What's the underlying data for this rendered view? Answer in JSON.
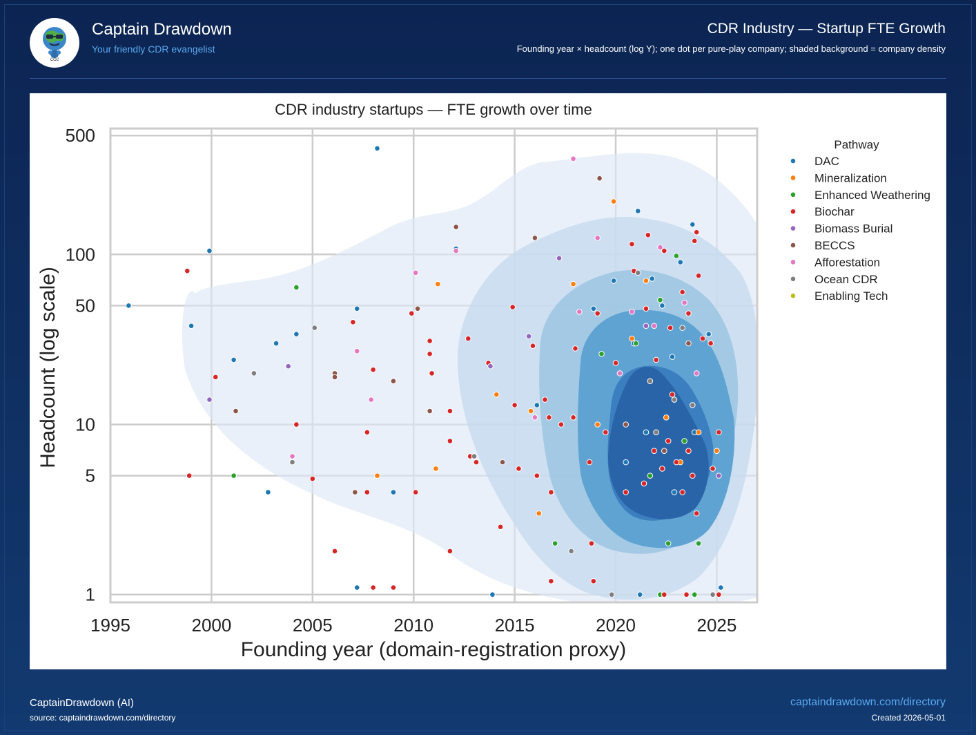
{
  "header": {
    "brand_title": "Captain Drawdown",
    "brand_subtitle": "Your friendly CDR evangelist",
    "title": "CDR Industry — Startup FTE Growth",
    "subtitle": "Founding year × headcount (log Y); one dot per pure-play company; shaded background = company density"
  },
  "logo": {
    "icon": "earth-mascot-icon",
    "badge_text": "CO2"
  },
  "footer": {
    "author": "CaptainDrawdown (AI)",
    "source": "source: captaindrawdown.com/directory",
    "link": "captaindrawdown.com/directory",
    "created": "Created 2026-05-01"
  },
  "colors": {
    "background": "#0c2452",
    "accent": "#5aa9f0",
    "DAC": "#1f77b4",
    "Mineralization": "#ff7f0e",
    "Enhanced Weathering": "#2ca02c",
    "Biochar": "#d62728",
    "Biomass Burial": "#9467bd",
    "BECCS": "#8c564b",
    "Afforestation": "#e377c2",
    "Ocean CDR": "#7f7f7f",
    "Enabling Tech": "#bcbd22"
  },
  "chart_data": {
    "type": "scatter",
    "title": "CDR industry startups — FTE growth over time",
    "xlabel": "Founding year (domain-registration proxy)",
    "ylabel": "Headcount  (log scale)",
    "xlim": [
      1995,
      2027
    ],
    "ylim": [
      0.9,
      550
    ],
    "yscale": "log",
    "xticks": [
      1995,
      2000,
      2005,
      2010,
      2015,
      2020,
      2025
    ],
    "yticks": [
      1,
      5,
      10,
      50,
      100,
      500
    ],
    "grid": true,
    "legend": {
      "title": "Pathway",
      "placement": "outside-right"
    },
    "density_background": true,
    "series": [
      {
        "name": "DAC",
        "points": [
          [
            1995.9,
            50
          ],
          [
            1999.0,
            38
          ],
          [
            1999.9,
            105
          ],
          [
            2001.1,
            24
          ],
          [
            2003.2,
            30
          ],
          [
            2004.2,
            34
          ],
          [
            2002.8,
            4
          ],
          [
            2007.2,
            48
          ],
          [
            2008.2,
            420
          ],
          [
            2009.0,
            4
          ],
          [
            2012.1,
            108
          ],
          [
            2013.9,
            1
          ],
          [
            2016.1,
            13
          ],
          [
            2018.9,
            48
          ],
          [
            2019.9,
            70
          ],
          [
            2021.1,
            180
          ],
          [
            2021.8,
            72
          ],
          [
            2022.3,
            50
          ],
          [
            2023.2,
            90
          ],
          [
            2023.8,
            150
          ],
          [
            2024.6,
            34
          ],
          [
            2025.2,
            1.1
          ],
          [
            2020.9,
            30
          ],
          [
            2021.5,
            9
          ],
          [
            2022.8,
            25
          ],
          [
            2023.9,
            9
          ],
          [
            2020.5,
            6
          ],
          [
            2021.2,
            1
          ],
          [
            2022.9,
            4
          ],
          [
            2007.2,
            1.1
          ]
        ]
      },
      {
        "name": "Mineralization",
        "points": [
          [
            2008.2,
            5
          ],
          [
            2011.2,
            67
          ],
          [
            2011.1,
            5.5
          ],
          [
            2014.1,
            15
          ],
          [
            2015.8,
            12
          ],
          [
            2016.2,
            3
          ],
          [
            2017.9,
            67
          ],
          [
            2019.9,
            205
          ],
          [
            2021.5,
            70
          ],
          [
            2022.5,
            11
          ],
          [
            2024.1,
            9
          ],
          [
            2025.0,
            7
          ],
          [
            2019.1,
            10
          ],
          [
            2023.2,
            6
          ],
          [
            2020.8,
            32
          ]
        ]
      },
      {
        "name": "Enhanced Weathering",
        "points": [
          [
            2001.1,
            5
          ],
          [
            2004.2,
            64
          ],
          [
            2017.0,
            2
          ],
          [
            2019.3,
            26
          ],
          [
            2021.0,
            30
          ],
          [
            2022.2,
            54
          ],
          [
            2023.0,
            98
          ],
          [
            2023.4,
            8
          ],
          [
            2024.1,
            2
          ],
          [
            2021.7,
            5
          ],
          [
            2022.6,
            2
          ],
          [
            2023.9,
            1
          ],
          [
            2022.2,
            1
          ]
        ]
      },
      {
        "name": "Biochar",
        "points": [
          [
            1998.8,
            80
          ],
          [
            1998.9,
            5
          ],
          [
            2000.2,
            19
          ],
          [
            2004.2,
            10
          ],
          [
            2005.0,
            4.8
          ],
          [
            2006.1,
            1.8
          ],
          [
            2007.0,
            40
          ],
          [
            2007.7,
            9
          ],
          [
            2007.7,
            4
          ],
          [
            2008.0,
            21
          ],
          [
            2008.0,
            1.1
          ],
          [
            2009.0,
            1.1
          ],
          [
            2009.9,
            45
          ],
          [
            2010.1,
            4
          ],
          [
            2010.8,
            31
          ],
          [
            2010.8,
            26
          ],
          [
            2010.9,
            20
          ],
          [
            2011.8,
            12
          ],
          [
            2011.8,
            8
          ],
          [
            2011.8,
            1.8
          ],
          [
            2012.7,
            32
          ],
          [
            2012.8,
            6.5
          ],
          [
            2013.1,
            6
          ],
          [
            2013.7,
            23
          ],
          [
            2014.3,
            2.5
          ],
          [
            2014.9,
            49
          ],
          [
            2015.0,
            13
          ],
          [
            2015.2,
            5.5
          ],
          [
            2015.9,
            29
          ],
          [
            2016.1,
            5
          ],
          [
            2016.5,
            14
          ],
          [
            2016.7,
            11
          ],
          [
            2016.8,
            4
          ],
          [
            2016.8,
            1.2
          ],
          [
            2017.3,
            10
          ],
          [
            2017.9,
            11
          ],
          [
            2018.0,
            28
          ],
          [
            2018.7,
            6
          ],
          [
            2018.8,
            2
          ],
          [
            2018.9,
            1.2
          ],
          [
            2019.1,
            45
          ],
          [
            2019.5,
            9
          ],
          [
            2020.0,
            23
          ],
          [
            2020.8,
            115
          ],
          [
            2020.9,
            80
          ],
          [
            2021.5,
            48
          ],
          [
            2021.6,
            130
          ],
          [
            2022.0,
            24
          ],
          [
            2022.4,
            105
          ],
          [
            2022.7,
            37
          ],
          [
            2022.8,
            15
          ],
          [
            2023.3,
            60
          ],
          [
            2023.6,
            45
          ],
          [
            2023.9,
            120
          ],
          [
            2024.0,
            135
          ],
          [
            2024.1,
            75
          ],
          [
            2024.3,
            32
          ],
          [
            2024.7,
            30
          ],
          [
            2025.1,
            9
          ],
          [
            2024.8,
            5.5
          ],
          [
            2025.1,
            1
          ],
          [
            2020.5,
            4
          ],
          [
            2021.4,
            4.5
          ],
          [
            2021.9,
            7
          ],
          [
            2022.3,
            5.5
          ],
          [
            2022.6,
            8
          ],
          [
            2023.0,
            6
          ],
          [
            2023.3,
            4
          ],
          [
            2023.6,
            7
          ],
          [
            2023.8,
            5
          ],
          [
            2024.0,
            3
          ],
          [
            2022.4,
            1
          ],
          [
            2023.5,
            1
          ]
        ]
      },
      {
        "name": "Biomass Burial",
        "points": [
          [
            1999.9,
            14
          ],
          [
            2003.8,
            22
          ],
          [
            2004.0,
            6
          ],
          [
            2013.8,
            22
          ],
          [
            2015.7,
            33
          ],
          [
            2017.2,
            95
          ],
          [
            2025.1,
            5
          ],
          [
            2021.5,
            38
          ]
        ]
      },
      {
        "name": "BECCS",
        "points": [
          [
            2001.2,
            12
          ],
          [
            2006.1,
            20
          ],
          [
            2006.1,
            19
          ],
          [
            2007.1,
            4
          ],
          [
            2009.0,
            18
          ],
          [
            2010.2,
            48
          ],
          [
            2010.8,
            12
          ],
          [
            2012.1,
            145
          ],
          [
            2014.4,
            6
          ],
          [
            2016.0,
            125
          ],
          [
            2019.2,
            280
          ],
          [
            2020.5,
            10
          ],
          [
            2022.4,
            7
          ],
          [
            2023.6,
            30
          ]
        ]
      },
      {
        "name": "Afforestation",
        "points": [
          [
            2004.0,
            6.5
          ],
          [
            2007.2,
            27
          ],
          [
            2007.9,
            14
          ],
          [
            2010.1,
            78
          ],
          [
            2012.1,
            105
          ],
          [
            2016.0,
            11
          ],
          [
            2017.9,
            365
          ],
          [
            2018.2,
            46
          ],
          [
            2019.1,
            125
          ],
          [
            2020.8,
            46
          ],
          [
            2021.9,
            38
          ],
          [
            2022.2,
            110
          ],
          [
            2023.4,
            52
          ],
          [
            2024.0,
            20
          ],
          [
            2020.2,
            20
          ]
        ]
      },
      {
        "name": "Ocean CDR",
        "points": [
          [
            2002.1,
            20
          ],
          [
            2004.0,
            6
          ],
          [
            2005.1,
            37
          ],
          [
            2013.0,
            6.5
          ],
          [
            2017.8,
            1.8
          ],
          [
            2019.8,
            1
          ],
          [
            2021.1,
            78
          ],
          [
            2021.7,
            18
          ],
          [
            2022.9,
            14
          ],
          [
            2023.3,
            37
          ],
          [
            2024.8,
            1
          ],
          [
            2022.0,
            9
          ],
          [
            2023.8,
            13
          ]
        ]
      },
      {
        "name": "Enabling Tech",
        "points": []
      }
    ]
  }
}
